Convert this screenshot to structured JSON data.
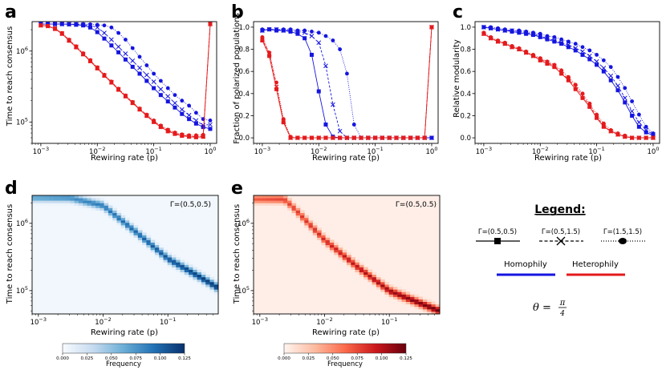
{
  "figure": {
    "panel_labels": [
      "a",
      "b",
      "c",
      "d",
      "e"
    ],
    "legend": {
      "title": "Legend:",
      "gamma_styles": [
        {
          "label": "Γ=(0.5,0.5)",
          "linestyle": "solid",
          "marker": "square"
        },
        {
          "label": "Γ=(0.5,1.5)",
          "linestyle": "dashed",
          "marker": "x"
        },
        {
          "label": "Γ=(1.5,1.5)",
          "linestyle": "dotted",
          "marker": "circle"
        }
      ],
      "colors": [
        {
          "label": "Homophily",
          "color": "#1515e0"
        },
        {
          "label": "Heterophily",
          "color": "#e41a1c"
        }
      ],
      "theta_text": "θ =",
      "theta_num": "π",
      "theta_den": "4"
    }
  },
  "chart_data": [
    {
      "panel": "a",
      "type": "line",
      "xlabel": "Rewiring rate (p)",
      "ylabel": "Time to reach consensus",
      "xscale": "log",
      "yscale": "log",
      "xlim": [
        0.0007,
        1.3
      ],
      "ylim": [
        50000,
        2600000
      ],
      "xticks": [
        {
          "v": 0.001,
          "m": "10",
          "e": "−3"
        },
        {
          "v": 0.01,
          "m": "10",
          "e": "−2"
        },
        {
          "v": 0.1,
          "m": "10",
          "e": "−1"
        },
        {
          "v": 1,
          "m": "10",
          "e": "0"
        }
      ],
      "yticks": [
        {
          "v": 100000,
          "m": "10",
          "e": "5"
        },
        {
          "v": 1000000,
          "m": "10",
          "e": "6"
        }
      ],
      "x": [
        0.001,
        0.00133,
        0.00178,
        0.00237,
        0.00316,
        0.00422,
        0.00562,
        0.0075,
        0.01,
        0.0133,
        0.0178,
        0.0237,
        0.0316,
        0.0422,
        0.0562,
        0.075,
        0.1,
        0.133,
        0.178,
        0.237,
        0.316,
        0.422,
        0.562,
        0.75,
        1.0
      ],
      "series": [
        {
          "name": "Homophily Γ=(0.5,0.5)",
          "color": "#1515e0",
          "dash": "solid",
          "marker": "square",
          "values": [
            2400000,
            2400000,
            2400000,
            2400000,
            2380000,
            2350000,
            2300000,
            2150000,
            1850000,
            1500000,
            1200000,
            960000,
            760000,
            600000,
            480000,
            380000,
            300000,
            240000,
            195000,
            160000,
            130000,
            110000,
            95000,
            85000,
            80000
          ]
        },
        {
          "name": "Homophily Γ=(0.5,1.5)",
          "color": "#1515e0",
          "dash": "dashed",
          "marker": "x",
          "values": [
            2400000,
            2400000,
            2400000,
            2400000,
            2400000,
            2380000,
            2350000,
            2300000,
            2150000,
            1800000,
            1450000,
            1150000,
            920000,
            730000,
            580000,
            460000,
            370000,
            290000,
            230000,
            185000,
            150000,
            125000,
            105000,
            90000,
            92000
          ]
        },
        {
          "name": "Homophily Γ=(1.5,1.5)",
          "color": "#1515e0",
          "dash": "dotted",
          "marker": "circle",
          "values": [
            2400000,
            2400000,
            2400000,
            2400000,
            2400000,
            2400000,
            2400000,
            2380000,
            2350000,
            2300000,
            2150000,
            1800000,
            1450000,
            1100000,
            830000,
            630000,
            480000,
            380000,
            300000,
            240000,
            200000,
            170000,
            135000,
            110000,
            105000
          ]
        },
        {
          "name": "Heterophily Γ=(0.5,0.5)",
          "color": "#e41a1c",
          "dash": "solid",
          "marker": "square",
          "values": [
            2300000,
            2250000,
            2050000,
            1750000,
            1400000,
            1130000,
            900000,
            720000,
            570000,
            450000,
            360000,
            285000,
            230000,
            185000,
            150000,
            122000,
            100000,
            85000,
            74000,
            68000,
            64000,
            62000,
            61000,
            62000,
            2400000
          ]
        },
        {
          "name": "Heterophily Γ=(0.5,1.5)",
          "color": "#e41a1c",
          "dash": "dashed",
          "marker": "x",
          "values": [
            2300000,
            2250000,
            2080000,
            1780000,
            1420000,
            1150000,
            910000,
            730000,
            580000,
            455000,
            365000,
            290000,
            233000,
            188000,
            152000,
            124000,
            102000,
            87000,
            76000,
            69000,
            65000,
            63000,
            62000,
            63000,
            2400000
          ]
        },
        {
          "name": "Heterophily Γ=(1.5,1.5)",
          "color": "#e41a1c",
          "dash": "dotted",
          "marker": "circle",
          "values": [
            2300000,
            2250000,
            2100000,
            1800000,
            1450000,
            1170000,
            930000,
            745000,
            590000,
            465000,
            372000,
            295000,
            237000,
            192000,
            155000,
            127000,
            105000,
            89000,
            78000,
            71000,
            67000,
            65000,
            65000,
            66000,
            2400000
          ]
        }
      ]
    },
    {
      "panel": "b",
      "type": "line",
      "xlabel": "Rewiring rate (p)",
      "ylabel": "Fraction of polarized populations",
      "xscale": "log",
      "yscale": "linear",
      "xlim": [
        0.0007,
        1.3
      ],
      "ylim": [
        -0.05,
        1.05
      ],
      "xticks": [
        {
          "v": 0.001,
          "m": "10",
          "e": "−3"
        },
        {
          "v": 0.01,
          "m": "10",
          "e": "−2"
        },
        {
          "v": 0.1,
          "m": "10",
          "e": "−1"
        },
        {
          "v": 1,
          "m": "10",
          "e": "0"
        }
      ],
      "yticks": [
        {
          "v": 0.0,
          "t": "0.0"
        },
        {
          "v": 0.2,
          "t": "0.2"
        },
        {
          "v": 0.4,
          "t": "0.4"
        },
        {
          "v": 0.6,
          "t": "0.6"
        },
        {
          "v": 0.8,
          "t": "0.8"
        },
        {
          "v": 1.0,
          "t": "1.0"
        }
      ],
      "x": [
        0.001,
        0.00133,
        0.00178,
        0.00237,
        0.00316,
        0.00422,
        0.00562,
        0.0075,
        0.01,
        0.0133,
        0.0178,
        0.0237,
        0.0316,
        0.0422,
        0.0562,
        0.075,
        0.1,
        0.133,
        0.178,
        0.237,
        0.316,
        0.422,
        0.562,
        0.75,
        1.0
      ],
      "series": [
        {
          "name": "Homophily Γ=(0.5,0.5)",
          "color": "#1515e0",
          "dash": "solid",
          "marker": "square",
          "values": [
            0.97,
            0.98,
            0.97,
            0.97,
            0.96,
            0.94,
            0.9,
            0.75,
            0.42,
            0.12,
            0.01,
            0.0,
            0.0,
            0.0,
            0.0,
            0.0,
            0.0,
            0.0,
            0.0,
            0.0,
            0.0,
            0.0,
            0.0,
            0.0,
            0.0
          ]
        },
        {
          "name": "Homophily Γ=(0.5,1.5)",
          "color": "#1515e0",
          "dash": "dashed",
          "marker": "x",
          "values": [
            0.97,
            0.98,
            0.98,
            0.97,
            0.97,
            0.96,
            0.95,
            0.92,
            0.86,
            0.65,
            0.3,
            0.06,
            0.0,
            0.0,
            0.0,
            0.0,
            0.0,
            0.0,
            0.0,
            0.0,
            0.0,
            0.0,
            0.0,
            0.0,
            0.0
          ]
        },
        {
          "name": "Homophily Γ=(1.5,1.5)",
          "color": "#1515e0",
          "dash": "dotted",
          "marker": "circle",
          "values": [
            0.98,
            0.98,
            0.98,
            0.98,
            0.98,
            0.97,
            0.97,
            0.96,
            0.95,
            0.92,
            0.88,
            0.8,
            0.58,
            0.12,
            0.0,
            0.0,
            0.0,
            0.0,
            0.0,
            0.0,
            0.0,
            0.0,
            0.0,
            0.0,
            0.0
          ]
        },
        {
          "name": "Heterophily Γ=(0.5,0.5)",
          "color": "#e41a1c",
          "dash": "solid",
          "marker": "square",
          "values": [
            0.88,
            0.74,
            0.44,
            0.14,
            0.0,
            0.0,
            0.0,
            0.0,
            0.0,
            0.0,
            0.0,
            0.0,
            0.0,
            0.0,
            0.0,
            0.0,
            0.0,
            0.0,
            0.0,
            0.0,
            0.0,
            0.0,
            0.0,
            0.0,
            1.0
          ]
        },
        {
          "name": "Heterophily Γ=(0.5,1.5)",
          "color": "#e41a1c",
          "dash": "dashed",
          "marker": "x",
          "values": [
            0.89,
            0.76,
            0.46,
            0.15,
            0.0,
            0.0,
            0.0,
            0.0,
            0.0,
            0.0,
            0.0,
            0.0,
            0.0,
            0.0,
            0.0,
            0.0,
            0.0,
            0.0,
            0.0,
            0.0,
            0.0,
            0.0,
            0.0,
            0.0,
            1.0
          ]
        },
        {
          "name": "Heterophily Γ=(1.5,1.5)",
          "color": "#e41a1c",
          "dash": "dotted",
          "marker": "circle",
          "values": [
            0.91,
            0.77,
            0.5,
            0.17,
            0.01,
            0.0,
            0.0,
            0.0,
            0.0,
            0.0,
            0.0,
            0.0,
            0.0,
            0.0,
            0.0,
            0.0,
            0.0,
            0.0,
            0.0,
            0.0,
            0.0,
            0.0,
            0.0,
            0.0,
            1.0
          ]
        }
      ]
    },
    {
      "panel": "c",
      "type": "line",
      "xlabel": "Rewiring rate (p)",
      "ylabel": "Relative modularity",
      "xscale": "log",
      "yscale": "linear",
      "xlim": [
        0.0007,
        1.3
      ],
      "ylim": [
        -0.05,
        1.05
      ],
      "xticks": [
        {
          "v": 0.001,
          "m": "10",
          "e": "−3"
        },
        {
          "v": 0.01,
          "m": "10",
          "e": "−2"
        },
        {
          "v": 0.1,
          "m": "10",
          "e": "−1"
        },
        {
          "v": 1,
          "m": "10",
          "e": "0"
        }
      ],
      "yticks": [
        {
          "v": 0.0,
          "t": "0.0"
        },
        {
          "v": 0.2,
          "t": "0.2"
        },
        {
          "v": 0.4,
          "t": "0.4"
        },
        {
          "v": 0.6,
          "t": "0.6"
        },
        {
          "v": 0.8,
          "t": "0.8"
        },
        {
          "v": 1.0,
          "t": "1.0"
        }
      ],
      "x": [
        0.001,
        0.00133,
        0.00178,
        0.00237,
        0.00316,
        0.00422,
        0.00562,
        0.0075,
        0.01,
        0.0133,
        0.0178,
        0.0237,
        0.0316,
        0.0422,
        0.0562,
        0.075,
        0.1,
        0.133,
        0.178,
        0.237,
        0.316,
        0.422,
        0.562,
        0.75,
        1.0
      ],
      "series": [
        {
          "name": "Homophily Γ=(0.5,0.5)",
          "color": "#1515e0",
          "dash": "solid",
          "marker": "square",
          "values": [
            1.0,
            0.99,
            0.98,
            0.97,
            0.96,
            0.95,
            0.94,
            0.93,
            0.91,
            0.89,
            0.87,
            0.85,
            0.82,
            0.79,
            0.75,
            0.71,
            0.66,
            0.6,
            0.52,
            0.43,
            0.32,
            0.2,
            0.1,
            0.05,
            0.02
          ]
        },
        {
          "name": "Homophily Γ=(0.5,1.5)",
          "color": "#1515e0",
          "dash": "dashed",
          "marker": "x",
          "values": [
            1.0,
            0.99,
            0.98,
            0.97,
            0.97,
            0.96,
            0.95,
            0.94,
            0.92,
            0.9,
            0.88,
            0.86,
            0.84,
            0.81,
            0.78,
            0.74,
            0.69,
            0.63,
            0.56,
            0.47,
            0.36,
            0.24,
            0.14,
            0.07,
            0.03
          ]
        },
        {
          "name": "Homophily Γ=(1.5,1.5)",
          "color": "#1515e0",
          "dash": "dotted",
          "marker": "circle",
          "values": [
            1.0,
            1.0,
            0.99,
            0.98,
            0.97,
            0.97,
            0.96,
            0.95,
            0.94,
            0.92,
            0.91,
            0.89,
            0.87,
            0.85,
            0.82,
            0.79,
            0.75,
            0.7,
            0.64,
            0.55,
            0.45,
            0.33,
            0.21,
            0.1,
            0.04
          ]
        },
        {
          "name": "Heterophily Γ=(0.5,0.5)",
          "color": "#e41a1c",
          "dash": "solid",
          "marker": "square",
          "values": [
            0.94,
            0.9,
            0.87,
            0.85,
            0.82,
            0.8,
            0.77,
            0.74,
            0.7,
            0.67,
            0.64,
            0.58,
            0.52,
            0.44,
            0.36,
            0.28,
            0.18,
            0.1,
            0.06,
            0.03,
            0.01,
            0.0,
            0.0,
            0.0,
            0.0
          ]
        },
        {
          "name": "Heterophily Γ=(0.5,1.5)",
          "color": "#e41a1c",
          "dash": "dashed",
          "marker": "x",
          "values": [
            0.94,
            0.9,
            0.87,
            0.85,
            0.82,
            0.8,
            0.77,
            0.74,
            0.71,
            0.68,
            0.65,
            0.59,
            0.53,
            0.46,
            0.38,
            0.29,
            0.19,
            0.11,
            0.06,
            0.03,
            0.01,
            0.0,
            0.0,
            0.0,
            0.0
          ]
        },
        {
          "name": "Heterophily Γ=(1.5,1.5)",
          "color": "#e41a1c",
          "dash": "dotted",
          "marker": "circle",
          "values": [
            0.95,
            0.91,
            0.88,
            0.86,
            0.83,
            0.81,
            0.78,
            0.75,
            0.72,
            0.69,
            0.66,
            0.61,
            0.55,
            0.48,
            0.4,
            0.31,
            0.21,
            0.13,
            0.07,
            0.04,
            0.02,
            0.0,
            0.0,
            0.0,
            0.0
          ]
        }
      ]
    },
    {
      "panel": "d",
      "type": "heatmap",
      "xlabel": "Rewiring rate (p)",
      "ylabel": "Time to reach consensus",
      "annotation": "Γ=(0.5,0.5)",
      "colormap": "Blues",
      "xscale": "log",
      "yscale": "log",
      "xlim": [
        0.0008,
        0.6
      ],
      "ylim": [
        45000,
        2600000
      ],
      "xticks": [
        {
          "v": 0.001,
          "m": "10",
          "e": "−3"
        },
        {
          "v": 0.01,
          "m": "10",
          "e": "−2"
        },
        {
          "v": 0.1,
          "m": "10",
          "e": "−1"
        }
      ],
      "yticks": [
        {
          "v": 100000,
          "m": "10",
          "e": "5"
        },
        {
          "v": 1000000,
          "m": "10",
          "e": "6"
        }
      ],
      "colorbar": {
        "label": "Frequency",
        "min": 0.0,
        "max": 0.125,
        "ticks": [
          "0.000",
          "0.025",
          "0.050",
          "0.075",
          "0.100",
          "0.125"
        ]
      },
      "ridge": {
        "p": [
          0.001,
          0.00316,
          0.01,
          0.0316,
          0.1,
          0.316,
          0.6
        ],
        "t": [
          2400000,
          2400000,
          1850000,
          760000,
          300000,
          160000,
          110000
        ]
      }
    },
    {
      "panel": "e",
      "type": "heatmap",
      "xlabel": "Rewiring rate (p)",
      "ylabel": "Time to reach consensus",
      "annotation": "Γ=(0.5,0.5)",
      "colormap": "Reds",
      "xscale": "log",
      "yscale": "log",
      "xlim": [
        0.0008,
        0.6
      ],
      "ylim": [
        45000,
        2600000
      ],
      "xticks": [
        {
          "v": 0.001,
          "m": "10",
          "e": "−3"
        },
        {
          "v": 0.01,
          "m": "10",
          "e": "−2"
        },
        {
          "v": 0.1,
          "m": "10",
          "e": "−1"
        }
      ],
      "yticks": [
        {
          "v": 100000,
          "m": "10",
          "e": "5"
        },
        {
          "v": 1000000,
          "m": "10",
          "e": "6"
        }
      ],
      "colorbar": {
        "label": "Frequency",
        "min": 0.0,
        "max": 0.125,
        "ticks": [
          "0.000",
          "0.025",
          "0.050",
          "0.075",
          "0.100",
          "0.125"
        ]
      },
      "ridge": {
        "p": [
          0.001,
          0.00237,
          0.00316,
          0.01,
          0.0316,
          0.1,
          0.316,
          0.6
        ],
        "t": [
          2300000,
          2300000,
          1800000,
          570000,
          230000,
          100000,
          64000,
          50000
        ]
      }
    }
  ]
}
